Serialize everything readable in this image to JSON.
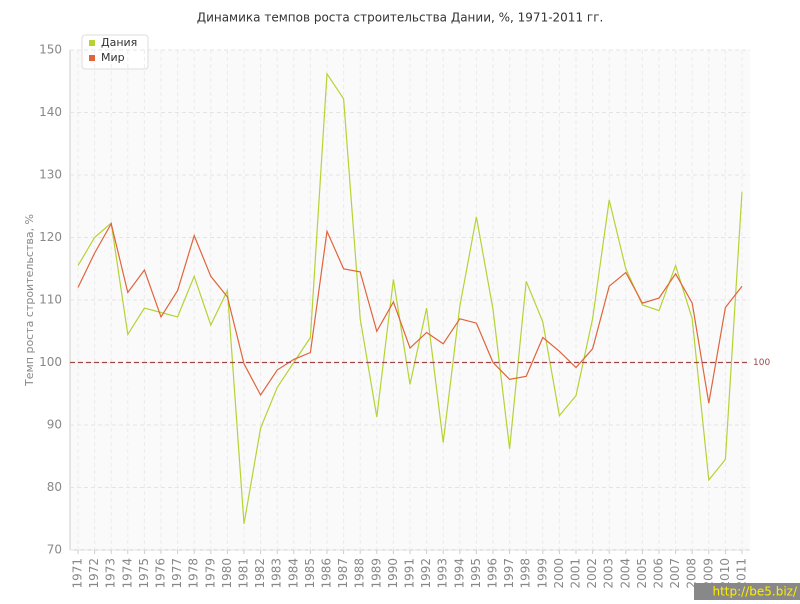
{
  "chart_data": {
    "type": "line",
    "title": "Динамика темпов роста строительства Дании, %, 1971-2011 гг.",
    "y_label": "Темп роста строительства, %",
    "categories": [
      "1971",
      "1972",
      "1973",
      "1974",
      "1975",
      "1976",
      "1977",
      "1978",
      "1979",
      "1980",
      "1981",
      "1982",
      "1983",
      "1984",
      "1985",
      "1986",
      "1987",
      "1988",
      "1989",
      "1990",
      "1991",
      "1992",
      "1993",
      "1994",
      "1995",
      "1996",
      "1997",
      "1998",
      "1999",
      "2000",
      "2001",
      "2002",
      "2003",
      "2004",
      "2005",
      "2006",
      "2007",
      "2008",
      "2009",
      "2010",
      "2011"
    ],
    "series": [
      {
        "name": "Дания",
        "color": "#b5d335",
        "values": [
          115.5,
          120,
          122.3,
          104.5,
          108.7,
          108,
          107.3,
          113.8,
          106,
          111.5,
          74.2,
          89.5,
          96,
          100,
          104,
          146.2,
          142.2,
          107,
          91.3,
          113.3,
          96.5,
          108.7,
          87.2,
          109,
          123.3,
          108.5,
          86.2,
          113,
          106.5,
          91.5,
          94.7,
          107,
          126,
          115,
          109.2,
          108.3,
          115.5,
          107,
          81.2,
          84.5,
          127.3
        ]
      },
      {
        "name": "Мир",
        "color": "#e0643c",
        "values": [
          112,
          117.5,
          122.2,
          111.2,
          114.8,
          107.3,
          111.5,
          120.3,
          113.8,
          110.5,
          99.8,
          94.8,
          98.8,
          100.5,
          101.6,
          121,
          115,
          114.5,
          105,
          109.7,
          102.3,
          104.8,
          103,
          107,
          106.3,
          100,
          97.3,
          97.8,
          104,
          101.8,
          99.2,
          102.2,
          112.2,
          114.4,
          109.5,
          110.3,
          114.2,
          109.5,
          93.5,
          108.8,
          112.2
        ]
      }
    ],
    "ylim": [
      70,
      150
    ],
    "yticks": [
      70,
      80,
      90,
      100,
      110,
      120,
      130,
      140,
      150
    ],
    "grid": true,
    "reference_line": 100,
    "reference_color": "#a04848",
    "legend": "upper-left",
    "watermark": "http://be5.biz/"
  }
}
